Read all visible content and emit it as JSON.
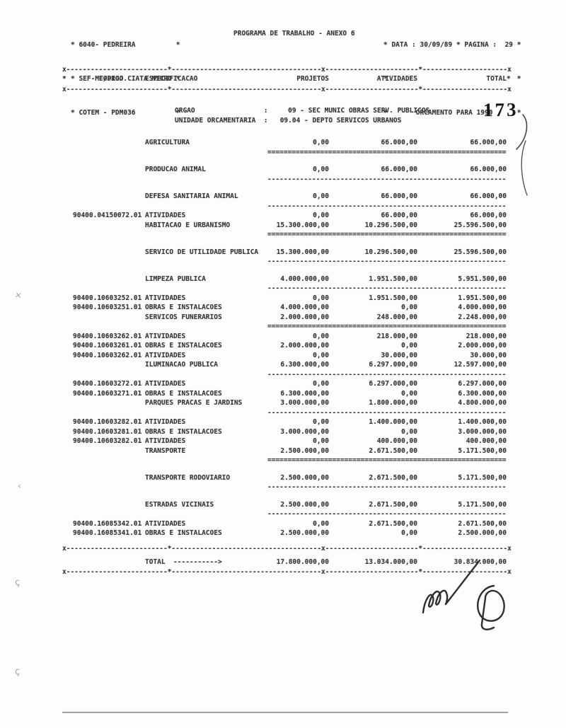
{
  "colors": {
    "ink": "#3c3c3c",
    "paper": "#fdfdfc",
    "stamp_ink": "#161616"
  },
  "header": {
    "left_lines": [
      "* 6040- PEDREIRA          *",
      "* SEF-MF/PROJ.CIATA MICRO *",
      "* COTEM - PDM036          *"
    ],
    "center_title": "PROGRAMA DE TRABALHO - ANEXO 6",
    "right_lines": [
      "* DATA : 30/09/89 * PAGINA :  29 *",
      "*                                *",
      "*       ORCAMENTO PARA 1990      *"
    ]
  },
  "columns": {
    "left_mark": "*",
    "codigo": "CODIGO",
    "especificacao": "ESPECIFICACAO",
    "projetos": "PROJETOS",
    "atividades": "ATIVIDADES",
    "total": "TOTAL",
    "right_mark": "*"
  },
  "orgao": {
    "line1": "ORGAO                 :     09 - SEC MUNIC OBRAS SERV. PUBLICOS",
    "line2": "UNIDADE ORCAMENTARIA  :   09.04 - DEPTO SERVICOS URBANOS"
  },
  "stamp": {
    "page_number": "173"
  },
  "table": {
    "rows": [
      {
        "type": "category",
        "label": "AGRICULTURA",
        "projetos": "0,00",
        "atividades": "66.000,00",
        "total": "66.000,00",
        "sep": "double"
      },
      {
        "type": "category",
        "label": "PRODUCAO ANIMAL",
        "projetos": "0,00",
        "atividades": "66.000,00",
        "total": "66.000,00",
        "sep": "dash"
      },
      {
        "type": "category",
        "label": "DEFESA SANITARIA ANIMAL",
        "projetos": "0,00",
        "atividades": "66.000,00",
        "total": "66.000,00",
        "sep": "dash"
      },
      {
        "type": "detail",
        "code": "90400.04150072.01",
        "label": "ATIVIDADES",
        "projetos": "0,00",
        "atividades": "66.000,00",
        "total": "66.000,00",
        "sep": "none"
      },
      {
        "type": "category",
        "label": "HABITACAO E URBANISMO",
        "projetos": "15.300.000,00",
        "atividades": "10.296.500,00",
        "total": "25.596.500,00",
        "sep": "double"
      },
      {
        "type": "category",
        "label": "SERVICO DE UTILIDADE PUBLICA",
        "projetos": "15.300.000,00",
        "atividades": "10.296.500,00",
        "total": "25.596.500,00",
        "sep": "dash"
      },
      {
        "type": "category",
        "label": "LIMPEZA PUBLICA",
        "projetos": "4.000.000,00",
        "atividades": "1.951.500,00",
        "total": "5.951.500,00",
        "sep": "dash"
      },
      {
        "type": "detail",
        "code": "90400.10603252.01",
        "label": "ATIVIDADES",
        "projetos": "0,00",
        "atividades": "1.951.500,00",
        "total": "1.951.500,00",
        "sep": "none"
      },
      {
        "type": "detail",
        "code": "90400.10603251.01",
        "label": "OBRAS E INSTALACOES",
        "projetos": "4.000.000,00",
        "atividades": "0,00",
        "total": "4.000.000,00",
        "sep": "none"
      },
      {
        "type": "category",
        "label": "SERVICOS FUNERARIOS",
        "projetos": "2.000.000,00",
        "atividades": "248.000,00",
        "total": "2.248.000,00",
        "sep": "double"
      },
      {
        "type": "detail",
        "code": "90400.10603262.01",
        "label": "ATIVIDADES",
        "projetos": "0,00",
        "atividades": "218.000,00",
        "total": "218.000,00",
        "sep": "none"
      },
      {
        "type": "detail",
        "code": "90400.10603261.01",
        "label": "OBRAS E INSTALACOES",
        "projetos": "2.000.000,00",
        "atividades": "0,00",
        "total": "2.000.000,00",
        "sep": "none"
      },
      {
        "type": "detail",
        "code": "90400.10603262.01",
        "label": "ATIVIDADES",
        "projetos": "0,00",
        "atividades": "30.000,00",
        "total": "30.000,00",
        "sep": "none"
      },
      {
        "type": "category",
        "label": "ILUMINACAO PUBLICA",
        "projetos": "6.300.000,00",
        "atividades": "6.297.000,00",
        "total": "12.597.000,00",
        "sep": "dash"
      },
      {
        "type": "detail",
        "code": "90400.10603272.01",
        "label": "ATIVIDADES",
        "projetos": "0,00",
        "atividades": "6.297.000,00",
        "total": "6.297.000,00",
        "sep": "none"
      },
      {
        "type": "detail",
        "code": "90400.10603271.01",
        "label": "OBRAS E INSTALACOES",
        "projetos": "6.300.000,00",
        "atividades": "0,00",
        "total": "6.300.000,00",
        "sep": "none"
      },
      {
        "type": "category",
        "label": "PARQUES PRACAS E JARDINS",
        "projetos": "3.000.000,00",
        "atividades": "1.800.000,00",
        "total": "4.800.000,00",
        "sep": "dash"
      },
      {
        "type": "detail",
        "code": "90400.10603282.01",
        "label": "ATIVIDADES",
        "projetos": "0,00",
        "atividades": "1.400.000,00",
        "total": "1.400.000,00",
        "sep": "none"
      },
      {
        "type": "detail",
        "code": "90400.10603281.01",
        "label": "OBRAS E INSTALACOES",
        "projetos": "3.000.000,00",
        "atividades": "0,00",
        "total": "3.000.000,00",
        "sep": "none"
      },
      {
        "type": "detail",
        "code": "90400.10603282.01",
        "label": "ATIVIDADES",
        "projetos": "0,00",
        "atividades": "400.000,00",
        "total": "400.000,00",
        "sep": "none"
      },
      {
        "type": "category",
        "label": "TRANSPORTE",
        "projetos": "2.500.000,00",
        "atividades": "2.671.500,00",
        "total": "5.171.500,00",
        "sep": "double"
      },
      {
        "type": "category",
        "label": "TRANSPORTE RODOVIARIO",
        "projetos": "2.500.000,00",
        "atividades": "2.671.500,00",
        "total": "5.171.500,00",
        "sep": "dash"
      },
      {
        "type": "category",
        "label": "ESTRADAS VICINAIS",
        "projetos": "2.500.000,00",
        "atividades": "2.671.500,00",
        "total": "5.171.500,00",
        "sep": "dash"
      },
      {
        "type": "detail",
        "code": "90400.16085342.01",
        "label": "ATIVIDADES",
        "projetos": "0,00",
        "atividades": "2.671.500,00",
        "total": "2.671.500,00",
        "sep": "none"
      },
      {
        "type": "detail",
        "code": "90400.16085341.01",
        "label": "OBRAS E INSTALACOES",
        "projetos": "2.500.000,00",
        "atividades": "0,00",
        "total": "2.500.000,00",
        "sep": "none"
      }
    ],
    "footer": {
      "label": "TOTAL  ----------->",
      "projetos": "17.800.000,00",
      "atividades": "13.034.000,00",
      "total": "30.834.000,00"
    }
  },
  "margin_marks": [
    "×",
    "‹",
    "ç",
    "ç"
  ]
}
